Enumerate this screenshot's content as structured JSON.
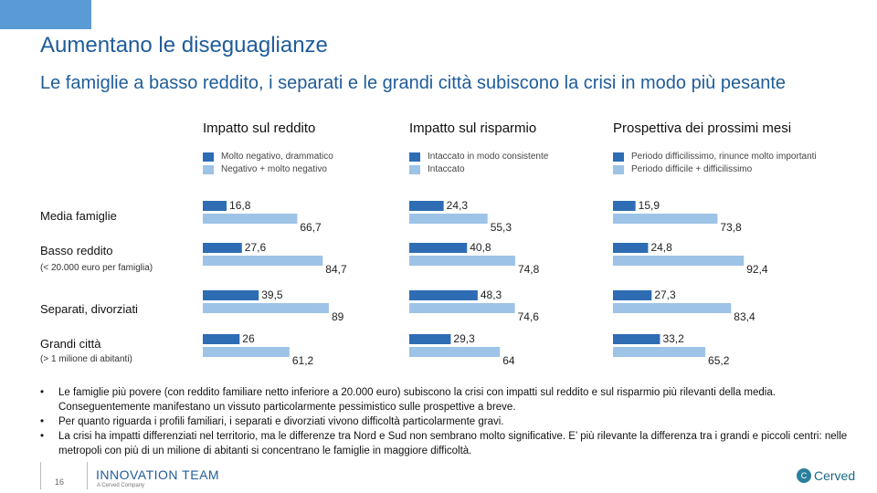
{
  "title": "Aumentano le diseguaglianze",
  "subtitle": "Le famiglie a basso reddito, i separati e le grandi città subiscono la crisi in modo più pesante",
  "rows": [
    {
      "label": "Media famiglie",
      "sub": ""
    },
    {
      "label": "Basso reddito",
      "sub": "(< 20.000 euro per famiglia)"
    },
    {
      "label": "Separati, divorziati",
      "sub": ""
    },
    {
      "label": "Grandi città",
      "sub": "(> 1 milione di abitanti)"
    }
  ],
  "chart_data": [
    {
      "type": "bar",
      "title": "Impatto sul reddito",
      "categories": [
        "Media famiglie",
        "Basso reddito",
        "Separati, divorziati",
        "Grandi città"
      ],
      "series": [
        {
          "name": "Molto negativo, drammatico",
          "values": [
            16.8,
            27.6,
            39.5,
            26.0
          ],
          "labels": [
            "16,8",
            "27,6",
            "39,5",
            "26"
          ]
        },
        {
          "name": "Negativo + molto negativo",
          "values": [
            66.7,
            84.7,
            89.0,
            61.2
          ],
          "labels": [
            "66,7",
            "84,7",
            "89",
            "61,2"
          ]
        }
      ]
    },
    {
      "type": "bar",
      "title": "Impatto sul risparmio",
      "categories": [
        "Media famiglie",
        "Basso reddito",
        "Separati, divorziati",
        "Grandi città"
      ],
      "series": [
        {
          "name": "Intaccato in modo consistente",
          "values": [
            24.3,
            40.8,
            48.3,
            29.3
          ],
          "labels": [
            "24,3",
            "40,8",
            "48,3",
            "29,3"
          ]
        },
        {
          "name": "Intaccato",
          "values": [
            55.3,
            74.8,
            74.6,
            64.0
          ],
          "labels": [
            "55,3",
            "74,8",
            "74,6",
            "64"
          ]
        }
      ]
    },
    {
      "type": "bar",
      "title": "Prospettiva dei prossimi mesi",
      "categories": [
        "Media famiglie",
        "Basso reddito",
        "Separati, divorziati",
        "Grandi città"
      ],
      "series": [
        {
          "name": "Periodo difficilissimo, rinunce molto importanti",
          "values": [
            15.9,
            24.8,
            27.3,
            33.2
          ],
          "labels": [
            "15,9",
            "24,8",
            "27,3",
            "33,2"
          ]
        },
        {
          "name": "Periodo difficile + difficilissimo",
          "values": [
            73.8,
            92.4,
            83.4,
            65.2
          ],
          "labels": [
            "73,8",
            "92,4",
            "83,4",
            "65,2"
          ]
        }
      ]
    }
  ],
  "colors": {
    "dark": "#2e6db4",
    "light": "#9dc3e6"
  },
  "bullets": [
    "Le famiglie più povere (con reddito familiare netto inferiore a 20.000 euro) subiscono la crisi con impatti sul reddito e sul risparmio più rilevanti della media. Conseguentemente manifestano un vissuto particolarmente pessimistico sulle prospettive a breve.",
    "Per quanto riguarda i profili familiari, i separati e divorziati vivono difficoltà particolarmente gravi.",
    "La crisi ha impatti differenziati nel territorio, ma le differenze tra Nord e Sud non sembrano molto significative. E’ più rilevante la differenza tra i grandi e piccoli centri: nelle metropoli con più di un milione di abitanti si concentrano le famiglie in maggiore difficoltà."
  ],
  "footer": {
    "page": "16",
    "brand": "INNOVATION TEAM",
    "brand_sub": "A Cerved Company",
    "logo_text": "Cerved",
    "logo_glyph": "C"
  }
}
